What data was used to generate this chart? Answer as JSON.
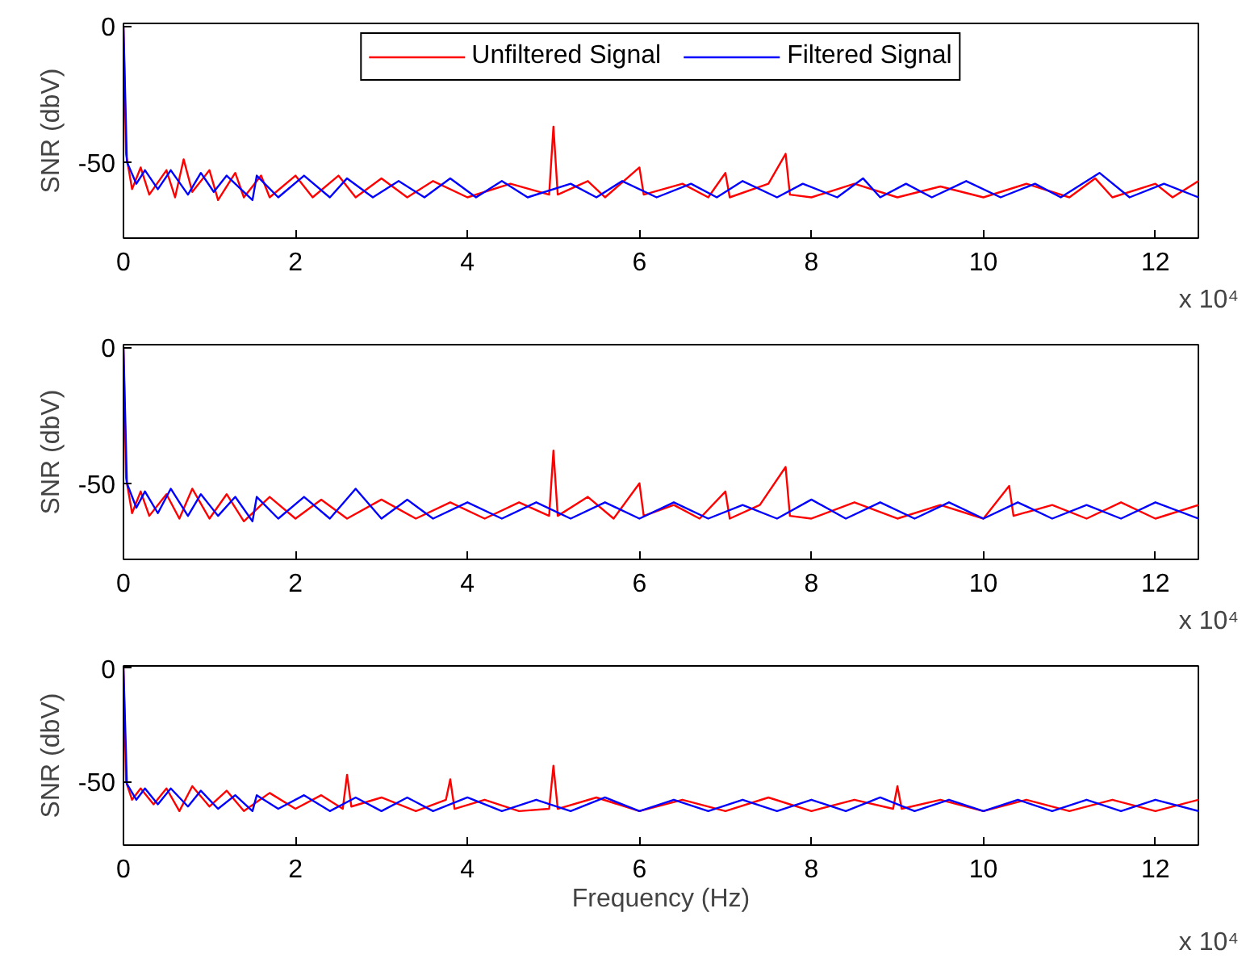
{
  "chart_data": [
    {
      "type": "line",
      "ylabel": "SNR (dbV)",
      "xlim": [
        0,
        12.5
      ],
      "ylim": [
        -78,
        1
      ],
      "xticks": [
        0,
        2,
        4,
        6,
        8,
        10,
        12
      ],
      "yticks": [
        0,
        -50
      ],
      "annotations": [
        "x 10⁴"
      ],
      "legend": "top",
      "grid": false,
      "series": [
        {
          "name": "Unfiltered Signal",
          "color": "#ff0000",
          "x": [
            0,
            0.03,
            0.1,
            0.2,
            0.3,
            0.5,
            0.6,
            0.7,
            0.8,
            1.0,
            1.1,
            1.3,
            1.4,
            1.6,
            1.7,
            2.0,
            2.2,
            2.5,
            2.7,
            3.0,
            3.3,
            3.6,
            4.0,
            4.5,
            4.95,
            5.0,
            5.05,
            5.4,
            5.6,
            6.0,
            6.05,
            6.5,
            6.8,
            7.0,
            7.05,
            7.5,
            7.7,
            7.75,
            8.0,
            8.5,
            9.0,
            9.5,
            10.0,
            10.5,
            11.0,
            11.3,
            11.5,
            12.0,
            12.2,
            12.5
          ],
          "values": [
            0,
            -47,
            -60,
            -52,
            -62,
            -53,
            -63,
            -49,
            -61,
            -53,
            -64,
            -54,
            -63,
            -55,
            -63,
            -55,
            -63,
            -55,
            -63,
            -56,
            -63,
            -57,
            -63,
            -58,
            -62,
            -37,
            -62,
            -57,
            -63,
            -52,
            -62,
            -58,
            -63,
            -54,
            -63,
            -58,
            -47,
            -62,
            -63,
            -58,
            -63,
            -59,
            -63,
            -58,
            -63,
            -56,
            -63,
            -58,
            -63,
            -57
          ]
        },
        {
          "name": "Filtered Signal",
          "color": "#0000ff",
          "x": [
            0,
            0.04,
            0.15,
            0.25,
            0.4,
            0.55,
            0.75,
            0.9,
            1.05,
            1.2,
            1.5,
            1.55,
            1.8,
            2.1,
            2.4,
            2.6,
            2.9,
            3.2,
            3.5,
            3.8,
            4.1,
            4.4,
            4.7,
            5.2,
            5.5,
            5.8,
            6.2,
            6.6,
            6.9,
            7.2,
            7.6,
            7.9,
            8.3,
            8.6,
            8.8,
            9.1,
            9.4,
            9.8,
            10.2,
            10.6,
            10.9,
            11.35,
            11.7,
            12.1,
            12.5
          ],
          "values": [
            0,
            -50,
            -58,
            -53,
            -60,
            -53,
            -62,
            -54,
            -61,
            -55,
            -64,
            -55,
            -63,
            -55,
            -63,
            -56,
            -63,
            -57,
            -63,
            -56,
            -63,
            -57,
            -63,
            -58,
            -63,
            -57,
            -63,
            -58,
            -63,
            -57,
            -63,
            -58,
            -63,
            -56,
            -63,
            -58,
            -63,
            -57,
            -63,
            -58,
            -63,
            -54,
            -63,
            -58,
            -63
          ]
        }
      ]
    },
    {
      "type": "line",
      "ylabel": "SNR (dbV)",
      "xlim": [
        0,
        12.5
      ],
      "ylim": [
        -78,
        1
      ],
      "xticks": [
        0,
        2,
        4,
        6,
        8,
        10,
        12
      ],
      "yticks": [
        0,
        -50
      ],
      "annotations": [
        "x 10⁴"
      ],
      "grid": false,
      "series": [
        {
          "color": "#ff0000",
          "x": [
            0,
            0.03,
            0.1,
            0.2,
            0.3,
            0.5,
            0.65,
            0.8,
            1.0,
            1.2,
            1.4,
            1.7,
            2.0,
            2.3,
            2.6,
            3.0,
            3.4,
            3.8,
            4.2,
            4.6,
            4.95,
            5.0,
            5.05,
            5.4,
            5.7,
            6.0,
            6.05,
            6.4,
            6.7,
            7.0,
            7.05,
            7.4,
            7.7,
            7.75,
            8.0,
            8.5,
            9.0,
            9.5,
            10.0,
            10.3,
            10.35,
            10.8,
            11.2,
            11.6,
            12.0,
            12.5
          ],
          "values": [
            0,
            -48,
            -61,
            -53,
            -62,
            -54,
            -63,
            -52,
            -63,
            -54,
            -64,
            -55,
            -63,
            -56,
            -63,
            -56,
            -63,
            -57,
            -63,
            -57,
            -62,
            -38,
            -62,
            -55,
            -63,
            -50,
            -62,
            -58,
            -63,
            -53,
            -63,
            -58,
            -44,
            -62,
            -63,
            -57,
            -63,
            -58,
            -63,
            -51,
            -62,
            -58,
            -63,
            -57,
            -63,
            -58
          ]
        },
        {
          "color": "#0000ff",
          "x": [
            0,
            0.04,
            0.15,
            0.25,
            0.4,
            0.55,
            0.75,
            0.9,
            1.1,
            1.3,
            1.5,
            1.55,
            1.8,
            2.1,
            2.4,
            2.7,
            3.0,
            3.3,
            3.6,
            4.0,
            4.4,
            4.8,
            5.2,
            5.6,
            6.0,
            6.4,
            6.8,
            7.2,
            7.6,
            8.0,
            8.4,
            8.8,
            9.2,
            9.6,
            10.0,
            10.4,
            10.8,
            11.2,
            11.6,
            12.0,
            12.5
          ],
          "values": [
            0,
            -50,
            -59,
            -53,
            -61,
            -52,
            -62,
            -54,
            -62,
            -55,
            -64,
            -55,
            -63,
            -55,
            -63,
            -52,
            -63,
            -56,
            -63,
            -57,
            -63,
            -57,
            -63,
            -57,
            -63,
            -57,
            -63,
            -58,
            -63,
            -56,
            -63,
            -57,
            -63,
            -57,
            -63,
            -57,
            -63,
            -58,
            -63,
            -57,
            -63
          ]
        }
      ]
    },
    {
      "type": "line",
      "ylabel": "SNR (dbV)",
      "xlabel": "Frequency (Hz)",
      "xlim": [
        0,
        12.5
      ],
      "ylim": [
        -78,
        1
      ],
      "xticks": [
        0,
        2,
        4,
        6,
        8,
        10,
        12
      ],
      "yticks": [
        0,
        -50
      ],
      "annotations": [
        "x 10⁴"
      ],
      "grid": false,
      "series": [
        {
          "color": "#ff0000",
          "x": [
            0,
            0.03,
            0.1,
            0.2,
            0.35,
            0.5,
            0.65,
            0.8,
            1.0,
            1.2,
            1.4,
            1.7,
            2.0,
            2.3,
            2.55,
            2.6,
            2.65,
            3.0,
            3.4,
            3.75,
            3.8,
            3.85,
            4.2,
            4.6,
            4.95,
            5.0,
            5.05,
            5.5,
            6.0,
            6.5,
            7.0,
            7.5,
            8.0,
            8.5,
            8.95,
            9.0,
            9.05,
            9.5,
            10.0,
            10.5,
            11.0,
            11.5,
            12.0,
            12.5
          ],
          "values": [
            0,
            -50,
            -58,
            -53,
            -60,
            -53,
            -63,
            -52,
            -61,
            -54,
            -63,
            -55,
            -62,
            -56,
            -62,
            -47,
            -61,
            -57,
            -63,
            -58,
            -49,
            -62,
            -58,
            -63,
            -62,
            -43,
            -62,
            -57,
            -63,
            -58,
            -63,
            -57,
            -63,
            -58,
            -62,
            -52,
            -62,
            -58,
            -63,
            -58,
            -63,
            -58,
            -63,
            -58
          ]
        },
        {
          "color": "#0000ff",
          "x": [
            0,
            0.04,
            0.15,
            0.25,
            0.4,
            0.55,
            0.75,
            0.9,
            1.1,
            1.3,
            1.5,
            1.55,
            1.8,
            2.1,
            2.4,
            2.7,
            3.0,
            3.3,
            3.6,
            4.0,
            4.4,
            4.8,
            5.2,
            5.6,
            6.0,
            6.4,
            6.8,
            7.2,
            7.6,
            8.0,
            8.4,
            8.8,
            9.2,
            9.6,
            10.0,
            10.4,
            10.8,
            11.2,
            11.6,
            12.0,
            12.5
          ],
          "values": [
            0,
            -51,
            -58,
            -53,
            -60,
            -53,
            -61,
            -54,
            -62,
            -56,
            -63,
            -56,
            -62,
            -56,
            -63,
            -57,
            -63,
            -57,
            -63,
            -57,
            -63,
            -58,
            -63,
            -57,
            -63,
            -58,
            -63,
            -58,
            -63,
            -58,
            -63,
            -57,
            -63,
            -58,
            -63,
            -58,
            -63,
            -58,
            -63,
            -58,
            -63
          ]
        }
      ]
    }
  ]
}
